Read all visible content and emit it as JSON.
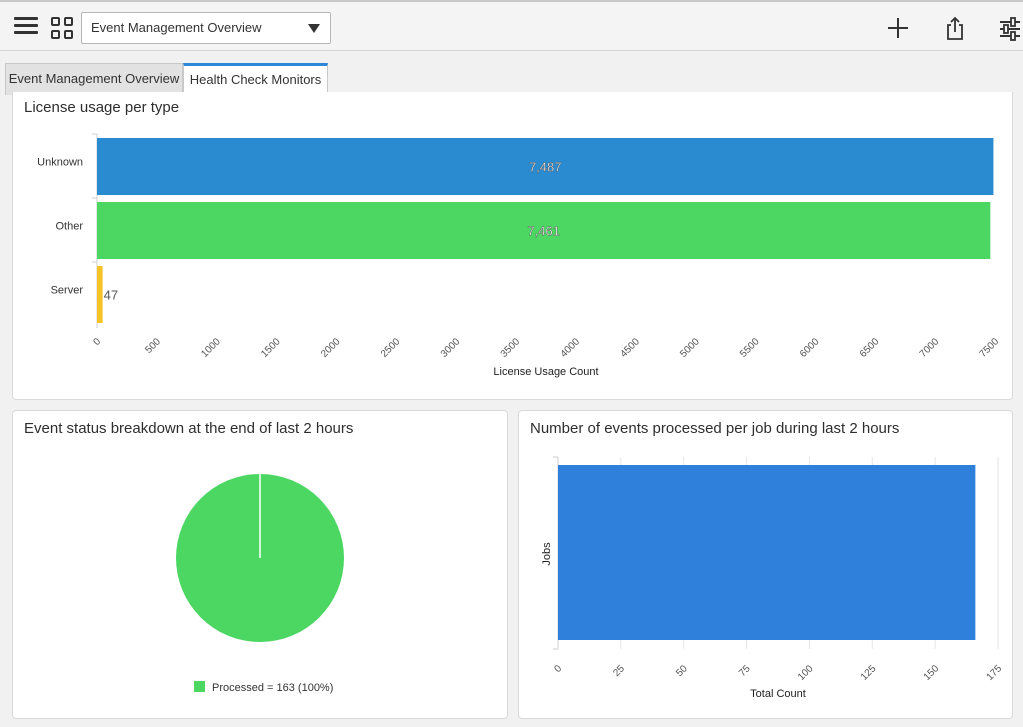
{
  "toolbar": {
    "dashboard_select": "Event Management Overview"
  },
  "tabs": [
    {
      "label": "Event Management Overview",
      "active": false
    },
    {
      "label": "Health Check Monitors",
      "active": true
    }
  ],
  "panels": {
    "license": {
      "title": "License usage per type"
    },
    "status": {
      "title": "Event status breakdown at the end of last 2 hours"
    },
    "jobs": {
      "title": "Number of events processed per job during last 2 hours"
    }
  },
  "chart_data": [
    {
      "type": "bar",
      "orientation": "horizontal",
      "title": "License usage per type",
      "categories": [
        "Unknown",
        "Other",
        "Server"
      ],
      "values": [
        7487,
        7461,
        47
      ],
      "data_labels": [
        "7,487",
        "7,461",
        "47"
      ],
      "colors": [
        "#2b8bd0",
        "#4bd762",
        "#f5c326"
      ],
      "xlabel": "License Usage Count",
      "ylabel": "",
      "xlim": [
        0,
        7500
      ],
      "xticks": [
        0,
        500,
        1000,
        1500,
        2000,
        2500,
        3000,
        3500,
        4000,
        4500,
        5000,
        5500,
        6000,
        6500,
        7000,
        7500
      ],
      "grid": false
    },
    {
      "type": "pie",
      "title": "Event status breakdown at the end of last 2 hours",
      "labels": [
        "Processed"
      ],
      "values": [
        163
      ],
      "colors": [
        "#4bd762"
      ],
      "legend": [
        "Processed = 163 (100%)"
      ],
      "legend_position": "bottom"
    },
    {
      "type": "bar",
      "orientation": "horizontal",
      "title": "Number of events processed per job during last 2 hours",
      "categories": [
        ""
      ],
      "values": [
        166
      ],
      "colors": [
        "#2f80da"
      ],
      "xlabel": "Total Count",
      "ylabel": "Jobs",
      "xlim": [
        0,
        175
      ],
      "xticks": [
        0,
        25,
        50,
        75,
        100,
        125,
        150,
        175
      ],
      "grid": true
    }
  ]
}
